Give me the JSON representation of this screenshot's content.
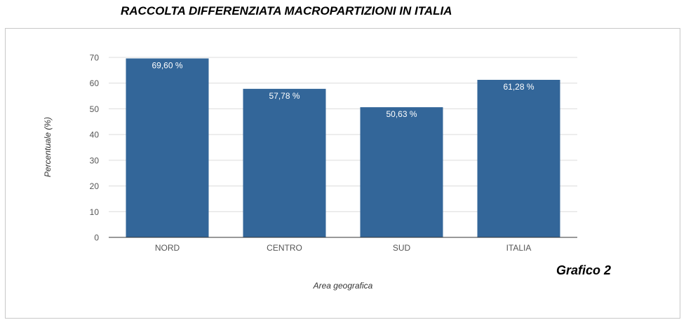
{
  "header": {
    "title": "RACCOLTA DIFFERENZIATA MACROPARTIZIONI IN ITALIA"
  },
  "caption": "Grafico 2",
  "colors": {
    "bar": "#336699",
    "grid": "#dcdcdc",
    "axis": "#555555",
    "bar_label": "#ffffff"
  },
  "chart_data": {
    "type": "bar",
    "title": "RACCOLTA DIFFERENZIATA MACROPARTIZIONI IN ITALIA",
    "xlabel": "Area geografica",
    "ylabel": "Percentuale (%)",
    "categories": [
      "NORD",
      "CENTRO",
      "SUD",
      "ITALIA"
    ],
    "values": [
      69.6,
      57.78,
      50.63,
      61.28
    ],
    "value_labels": [
      "69,60 %",
      "57,78 %",
      "50,63 %",
      "61,28 %"
    ],
    "ylim": [
      0,
      70
    ],
    "yticks": [
      0,
      10,
      20,
      30,
      40,
      50,
      60,
      70
    ],
    "grid": true,
    "legend": "none"
  }
}
